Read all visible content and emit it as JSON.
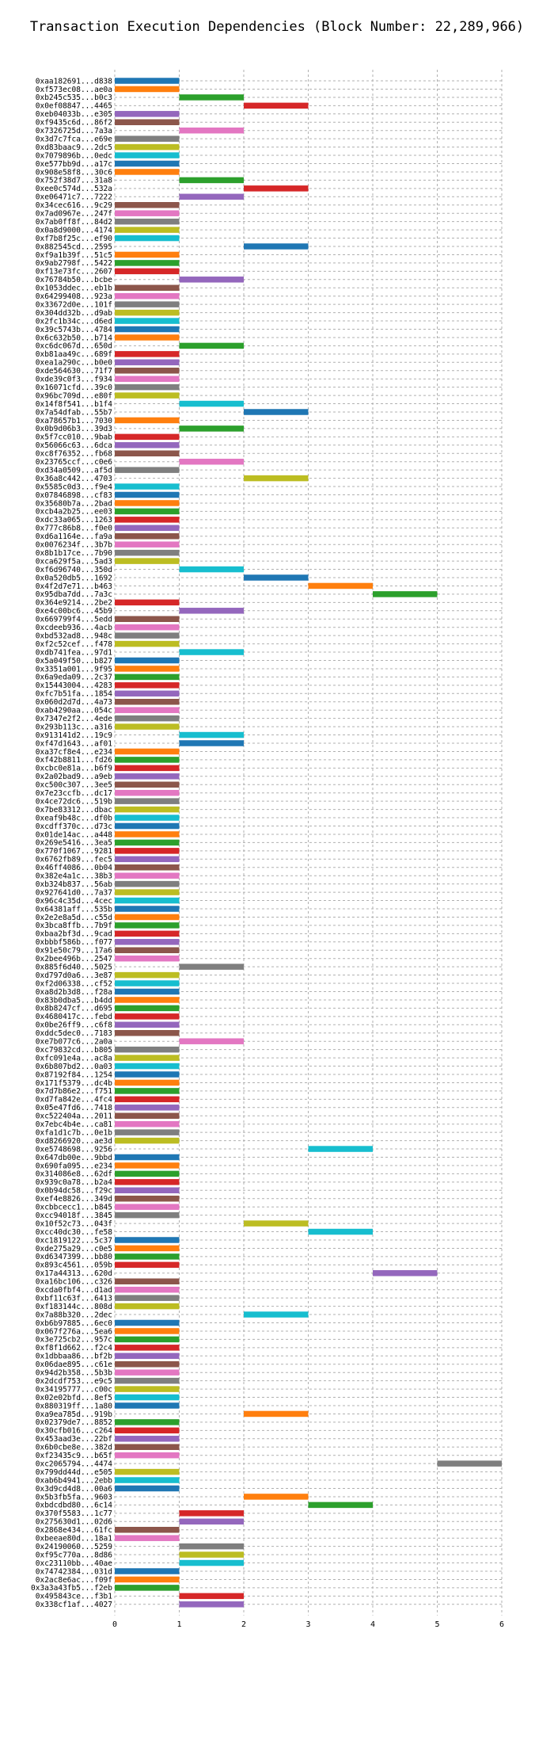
{
  "chart_data": {
    "type": "gantt",
    "title": "Transaction Execution Dependencies (Block Number: 22,289,966)",
    "xlabel": "",
    "ylabel": "",
    "xlim": [
      0,
      6
    ],
    "x_ticks": [
      0,
      1,
      2,
      3,
      4,
      5,
      6
    ],
    "grid": true,
    "palette": [
      "#1f77b4",
      "#ff7f0e",
      "#2ca02c",
      "#d62728",
      "#9467bd",
      "#8c564b",
      "#e377c2",
      "#7f7f7f",
      "#bcbd22",
      "#17becf"
    ],
    "transactions": [
      {
        "label": "0xaa182691...d838",
        "start": 0,
        "end": 1
      },
      {
        "label": "0xf573ec08...ae0a",
        "start": 0,
        "end": 1
      },
      {
        "label": "0xb245c535...b0c3",
        "start": 1,
        "end": 2
      },
      {
        "label": "0x0ef08847...4465",
        "start": 2,
        "end": 3
      },
      {
        "label": "0xeb04033b...e305",
        "start": 0,
        "end": 1
      },
      {
        "label": "0xf9435c6d...86f2",
        "start": 0,
        "end": 1
      },
      {
        "label": "0x7326725d...7a3a",
        "start": 1,
        "end": 2
      },
      {
        "label": "0x3d7c7fca...e69e",
        "start": 0,
        "end": 1
      },
      {
        "label": "0xd83baac9...2dc5",
        "start": 0,
        "end": 1
      },
      {
        "label": "0x7079896b...0edc",
        "start": 0,
        "end": 1
      },
      {
        "label": "0xe577bb9d...a17c",
        "start": 0,
        "end": 1
      },
      {
        "label": "0x908e58f8...30c6",
        "start": 0,
        "end": 1
      },
      {
        "label": "0x752f38d7...31a8",
        "start": 1,
        "end": 2
      },
      {
        "label": "0xee0c574d...532a",
        "start": 2,
        "end": 3
      },
      {
        "label": "0xe06471c7...7222",
        "start": 1,
        "end": 2
      },
      {
        "label": "0x34cec616...9c29",
        "start": 0,
        "end": 1
      },
      {
        "label": "0x7ad0967e...247f",
        "start": 0,
        "end": 1
      },
      {
        "label": "0x7ab0ff8f...84d2",
        "start": 0,
        "end": 1
      },
      {
        "label": "0x0a8d9000...4174",
        "start": 0,
        "end": 1
      },
      {
        "label": "0xf7b8f25c...ef90",
        "start": 0,
        "end": 1
      },
      {
        "label": "0x882545cd...2595",
        "start": 2,
        "end": 3
      },
      {
        "label": "0xf9a1b39f...51c5",
        "start": 0,
        "end": 1
      },
      {
        "label": "0x9ab2798f...5422",
        "start": 0,
        "end": 1
      },
      {
        "label": "0xf13e73fc...2607",
        "start": 0,
        "end": 1
      },
      {
        "label": "0x76784b50...bcbe",
        "start": 1,
        "end": 2
      },
      {
        "label": "0x1053ddec...eb1b",
        "start": 0,
        "end": 1
      },
      {
        "label": "0x64299408...923a",
        "start": 0,
        "end": 1
      },
      {
        "label": "0x33672d0e...101f",
        "start": 0,
        "end": 1
      },
      {
        "label": "0x304dd32b...d9ab",
        "start": 0,
        "end": 1
      },
      {
        "label": "0x2fc1b34c...d6ed",
        "start": 0,
        "end": 1
      },
      {
        "label": "0x39c5743b...4784",
        "start": 0,
        "end": 1
      },
      {
        "label": "0x6c632b50...b714",
        "start": 0,
        "end": 1
      },
      {
        "label": "0xc6dc067d...650d",
        "start": 1,
        "end": 2
      },
      {
        "label": "0xb81aa49c...689f",
        "start": 0,
        "end": 1
      },
      {
        "label": "0xea1a290c...b0e0",
        "start": 0,
        "end": 1
      },
      {
        "label": "0xde564630...71f7",
        "start": 0,
        "end": 1
      },
      {
        "label": "0xde39c0f3...f934",
        "start": 0,
        "end": 1
      },
      {
        "label": "0x16071cfd...39c0",
        "start": 0,
        "end": 1
      },
      {
        "label": "0x96bc709d...e80f",
        "start": 0,
        "end": 1
      },
      {
        "label": "0x14f8f541...b1f4",
        "start": 1,
        "end": 2
      },
      {
        "label": "0x7a54dfab...55b7",
        "start": 2,
        "end": 3
      },
      {
        "label": "0xa78657b1...7030",
        "start": 0,
        "end": 1
      },
      {
        "label": "0x0b9d06b3...39d3",
        "start": 1,
        "end": 2
      },
      {
        "label": "0x5f7cc010...9bab",
        "start": 0,
        "end": 1
      },
      {
        "label": "0x56066c63...6dca",
        "start": 0,
        "end": 1
      },
      {
        "label": "0xc8f76352...fb68",
        "start": 0,
        "end": 1
      },
      {
        "label": "0x23765ccf...c0e6",
        "start": 1,
        "end": 2
      },
      {
        "label": "0xd34a0509...af5d",
        "start": 0,
        "end": 1
      },
      {
        "label": "0x36a8c442...4703",
        "start": 2,
        "end": 3
      },
      {
        "label": "0x5585c0d3...f9e4",
        "start": 0,
        "end": 1
      },
      {
        "label": "0x07846898...cf83",
        "start": 0,
        "end": 1
      },
      {
        "label": "0x35680b7a...2bad",
        "start": 0,
        "end": 1
      },
      {
        "label": "0xcb4a2b25...ee03",
        "start": 0,
        "end": 1
      },
      {
        "label": "0xdc33a065...1263",
        "start": 0,
        "end": 1
      },
      {
        "label": "0x777c86b8...f0e0",
        "start": 0,
        "end": 1
      },
      {
        "label": "0xd6a1164e...fa9a",
        "start": 0,
        "end": 1
      },
      {
        "label": "0x0076234f...3b7b",
        "start": 0,
        "end": 1
      },
      {
        "label": "0x8b1b17ce...7b90",
        "start": 0,
        "end": 1
      },
      {
        "label": "0xca629f5a...5ad3",
        "start": 0,
        "end": 1
      },
      {
        "label": "0xf6d96740...350d",
        "start": 1,
        "end": 2
      },
      {
        "label": "0x0a520db5...1692",
        "start": 2,
        "end": 3
      },
      {
        "label": "0x4f2d7e71...b463",
        "start": 3,
        "end": 4
      },
      {
        "label": "0x95dba7dd...7a3c",
        "start": 4,
        "end": 5
      },
      {
        "label": "0x364e9214...2be2",
        "start": 0,
        "end": 1
      },
      {
        "label": "0xe4c00bc6...45b9",
        "start": 1,
        "end": 2
      },
      {
        "label": "0x669799f4...5edd",
        "start": 0,
        "end": 1
      },
      {
        "label": "0xcdeeb936...4acb",
        "start": 0,
        "end": 1
      },
      {
        "label": "0xbd532ad8...948c",
        "start": 0,
        "end": 1
      },
      {
        "label": "0xf2c52cef...f478",
        "start": 0,
        "end": 1
      },
      {
        "label": "0xdb741fea...97d1",
        "start": 1,
        "end": 2
      },
      {
        "label": "0x5a049f50...b827",
        "start": 0,
        "end": 1
      },
      {
        "label": "0x3351a001...9f95",
        "start": 0,
        "end": 1
      },
      {
        "label": "0x6a9eda09...2c37",
        "start": 0,
        "end": 1
      },
      {
        "label": "0x15443004...4283",
        "start": 0,
        "end": 1
      },
      {
        "label": "0xfc7b51fa...1854",
        "start": 0,
        "end": 1
      },
      {
        "label": "0x060d2d7d...4a73",
        "start": 0,
        "end": 1
      },
      {
        "label": "0xab4290aa...054c",
        "start": 0,
        "end": 1
      },
      {
        "label": "0x7347e2f2...4ede",
        "start": 0,
        "end": 1
      },
      {
        "label": "0x293b113c...a316",
        "start": 0,
        "end": 1
      },
      {
        "label": "0x913141d2...19c9",
        "start": 1,
        "end": 2
      },
      {
        "label": "0xf47d1643...af01",
        "start": 1,
        "end": 2
      },
      {
        "label": "0xa37cf8e4...e234",
        "start": 0,
        "end": 1
      },
      {
        "label": "0xf42b8811...fd26",
        "start": 0,
        "end": 1
      },
      {
        "label": "0xcbc0e81a...b6f9",
        "start": 0,
        "end": 1
      },
      {
        "label": "0x2a02bad9...a9eb",
        "start": 0,
        "end": 1
      },
      {
        "label": "0xc500c307...3ee5",
        "start": 0,
        "end": 1
      },
      {
        "label": "0x7e23ccfb...dc17",
        "start": 0,
        "end": 1
      },
      {
        "label": "0x4ce72dc6...519b",
        "start": 0,
        "end": 1
      },
      {
        "label": "0x7be83312...dbac",
        "start": 0,
        "end": 1
      },
      {
        "label": "0xeaf9b48c...df0b",
        "start": 0,
        "end": 1
      },
      {
        "label": "0xcdff370c...d73c",
        "start": 0,
        "end": 1
      },
      {
        "label": "0x01de14ac...a448",
        "start": 0,
        "end": 1
      },
      {
        "label": "0x269e5416...3ea5",
        "start": 0,
        "end": 1
      },
      {
        "label": "0x770f1067...9281",
        "start": 0,
        "end": 1
      },
      {
        "label": "0x6762fb89...fec5",
        "start": 0,
        "end": 1
      },
      {
        "label": "0x46ff4086...0b04",
        "start": 0,
        "end": 1
      },
      {
        "label": "0x382e4a1c...38b3",
        "start": 0,
        "end": 1
      },
      {
        "label": "0xb324b837...56ab",
        "start": 0,
        "end": 1
      },
      {
        "label": "0x927641d0...7a37",
        "start": 0,
        "end": 1
      },
      {
        "label": "0x96c4c35d...4cec",
        "start": 0,
        "end": 1
      },
      {
        "label": "0x64381aff...535b",
        "start": 0,
        "end": 1
      },
      {
        "label": "0x2e2e8a5d...c55d",
        "start": 0,
        "end": 1
      },
      {
        "label": "0x3bca8ffb...7b9f",
        "start": 0,
        "end": 1
      },
      {
        "label": "0xbaa2bf3d...9cad",
        "start": 0,
        "end": 1
      },
      {
        "label": "0xbbbf586b...f077",
        "start": 0,
        "end": 1
      },
      {
        "label": "0x91e50c79...17a6",
        "start": 0,
        "end": 1
      },
      {
        "label": "0x2bee496b...2547",
        "start": 0,
        "end": 1
      },
      {
        "label": "0x885f6d40...5025",
        "start": 1,
        "end": 2
      },
      {
        "label": "0xd797d0a6...3e87",
        "start": 0,
        "end": 1
      },
      {
        "label": "0xf2d06338...cf52",
        "start": 0,
        "end": 1
      },
      {
        "label": "0xa8d2b3d8...f28a",
        "start": 0,
        "end": 1
      },
      {
        "label": "0x83b0dba5...b4dd",
        "start": 0,
        "end": 1
      },
      {
        "label": "0x8b8247cf...d695",
        "start": 0,
        "end": 1
      },
      {
        "label": "0x4680417c...febd",
        "start": 0,
        "end": 1
      },
      {
        "label": "0x0be26ff9...c6f8",
        "start": 0,
        "end": 1
      },
      {
        "label": "0xddc5dec0...7183",
        "start": 0,
        "end": 1
      },
      {
        "label": "0xe7b077c6...2a0a",
        "start": 1,
        "end": 2
      },
      {
        "label": "0xc79832cd...b805",
        "start": 0,
        "end": 1
      },
      {
        "label": "0xfc091e4a...ac8a",
        "start": 0,
        "end": 1
      },
      {
        "label": "0x6b807bd2...0a03",
        "start": 0,
        "end": 1
      },
      {
        "label": "0x87192f84...1254",
        "start": 0,
        "end": 1
      },
      {
        "label": "0x171f5379...dc4b",
        "start": 0,
        "end": 1
      },
      {
        "label": "0x7d7b86e2...f751",
        "start": 0,
        "end": 1
      },
      {
        "label": "0xd7fa842e...4fc4",
        "start": 0,
        "end": 1
      },
      {
        "label": "0x05e47fd6...7418",
        "start": 0,
        "end": 1
      },
      {
        "label": "0xc522404a...2011",
        "start": 0,
        "end": 1
      },
      {
        "label": "0x7ebc4b4e...ca81",
        "start": 0,
        "end": 1
      },
      {
        "label": "0xfa1d1c7b...0e1b",
        "start": 0,
        "end": 1
      },
      {
        "label": "0xd8266920...ae3d",
        "start": 0,
        "end": 1
      },
      {
        "label": "0xe5748698...9256",
        "start": 3,
        "end": 4
      },
      {
        "label": "0x647db00e...9bbd",
        "start": 0,
        "end": 1
      },
      {
        "label": "0x690fa095...e234",
        "start": 0,
        "end": 1
      },
      {
        "label": "0x314086e8...62df",
        "start": 0,
        "end": 1
      },
      {
        "label": "0x939c0a78...b2a4",
        "start": 0,
        "end": 1
      },
      {
        "label": "0x0b94dc58...f29c",
        "start": 0,
        "end": 1
      },
      {
        "label": "0xef4e8826...349d",
        "start": 0,
        "end": 1
      },
      {
        "label": "0xcbbcecc1...b845",
        "start": 0,
        "end": 1
      },
      {
        "label": "0xcc94018f...3845",
        "start": 0,
        "end": 1
      },
      {
        "label": "0x10f52c73...043f",
        "start": 2,
        "end": 3
      },
      {
        "label": "0xcc40dc30...fe58",
        "start": 3,
        "end": 4
      },
      {
        "label": "0xc1819122...5c37",
        "start": 0,
        "end": 1
      },
      {
        "label": "0xde275a29...c0e5",
        "start": 0,
        "end": 1
      },
      {
        "label": "0xd6347399...bb80",
        "start": 0,
        "end": 1
      },
      {
        "label": "0x893c4561...059b",
        "start": 0,
        "end": 1
      },
      {
        "label": "0x17a44313...620d",
        "start": 4,
        "end": 5
      },
      {
        "label": "0xa16bc106...c326",
        "start": 0,
        "end": 1
      },
      {
        "label": "0xcda0fbf4...d1ad",
        "start": 0,
        "end": 1
      },
      {
        "label": "0xbf11c63f...6413",
        "start": 0,
        "end": 1
      },
      {
        "label": "0xf183144c...808d",
        "start": 0,
        "end": 1
      },
      {
        "label": "0x7a88b320...2dec",
        "start": 2,
        "end": 3
      },
      {
        "label": "0xb6b97885...6ec0",
        "start": 0,
        "end": 1
      },
      {
        "label": "0x067f276a...5ea6",
        "start": 0,
        "end": 1
      },
      {
        "label": "0x3e725cb2...957c",
        "start": 0,
        "end": 1
      },
      {
        "label": "0xf8f1d662...f2c4",
        "start": 0,
        "end": 1
      },
      {
        "label": "0x1dbbaa86...bf2b",
        "start": 0,
        "end": 1
      },
      {
        "label": "0x06dae895...c61e",
        "start": 0,
        "end": 1
      },
      {
        "label": "0x94d2b358...5b3b",
        "start": 0,
        "end": 1
      },
      {
        "label": "0x2dcdf753...e9c5",
        "start": 0,
        "end": 1
      },
      {
        "label": "0x34195777...c00c",
        "start": 0,
        "end": 1
      },
      {
        "label": "0x02e02bfd...8ef5",
        "start": 0,
        "end": 1
      },
      {
        "label": "0x880319ff...1a80",
        "start": 0,
        "end": 1
      },
      {
        "label": "0xa9ea785d...919b",
        "start": 2,
        "end": 3
      },
      {
        "label": "0x02379de7...8852",
        "start": 0,
        "end": 1
      },
      {
        "label": "0x30cfb016...c264",
        "start": 0,
        "end": 1
      },
      {
        "label": "0x453aad3e...22bf",
        "start": 0,
        "end": 1
      },
      {
        "label": "0x6b0cbe8e...382d",
        "start": 0,
        "end": 1
      },
      {
        "label": "0xf23435c9...b65f",
        "start": 0,
        "end": 1
      },
      {
        "label": "0xc2065794...4474",
        "start": 5,
        "end": 6
      },
      {
        "label": "0x799dd44d...e505",
        "start": 0,
        "end": 1
      },
      {
        "label": "0xab6b4941...2ebb",
        "start": 0,
        "end": 1
      },
      {
        "label": "0x3d9cd4d8...00a6",
        "start": 0,
        "end": 1
      },
      {
        "label": "0x5b3fb5fa...9603",
        "start": 2,
        "end": 3
      },
      {
        "label": "0xbdcdbd80...6c14",
        "start": 3,
        "end": 4
      },
      {
        "label": "0x370f5583...1c77",
        "start": 1,
        "end": 2
      },
      {
        "label": "0x275630d1...02d6",
        "start": 1,
        "end": 2
      },
      {
        "label": "0x2868e434...61fc",
        "start": 0,
        "end": 1
      },
      {
        "label": "0xbeeae80d...18a1",
        "start": 0,
        "end": 1
      },
      {
        "label": "0x24190060...5259",
        "start": 1,
        "end": 2
      },
      {
        "label": "0xf95c770a...8d86",
        "start": 1,
        "end": 2
      },
      {
        "label": "0xc23110bb...40ae",
        "start": 1,
        "end": 2
      },
      {
        "label": "0x74742384...031d",
        "start": 0,
        "end": 1
      },
      {
        "label": "0x2ac8e6ac...f09f",
        "start": 0,
        "end": 1
      },
      {
        "label": "0x3a3a43fb5...f2eb",
        "start": 0,
        "end": 1
      },
      {
        "label": "0x495843ce...f3b1",
        "start": 1,
        "end": 2
      },
      {
        "label": "0x338cf1af...4027",
        "start": 1,
        "end": 2
      }
    ]
  }
}
